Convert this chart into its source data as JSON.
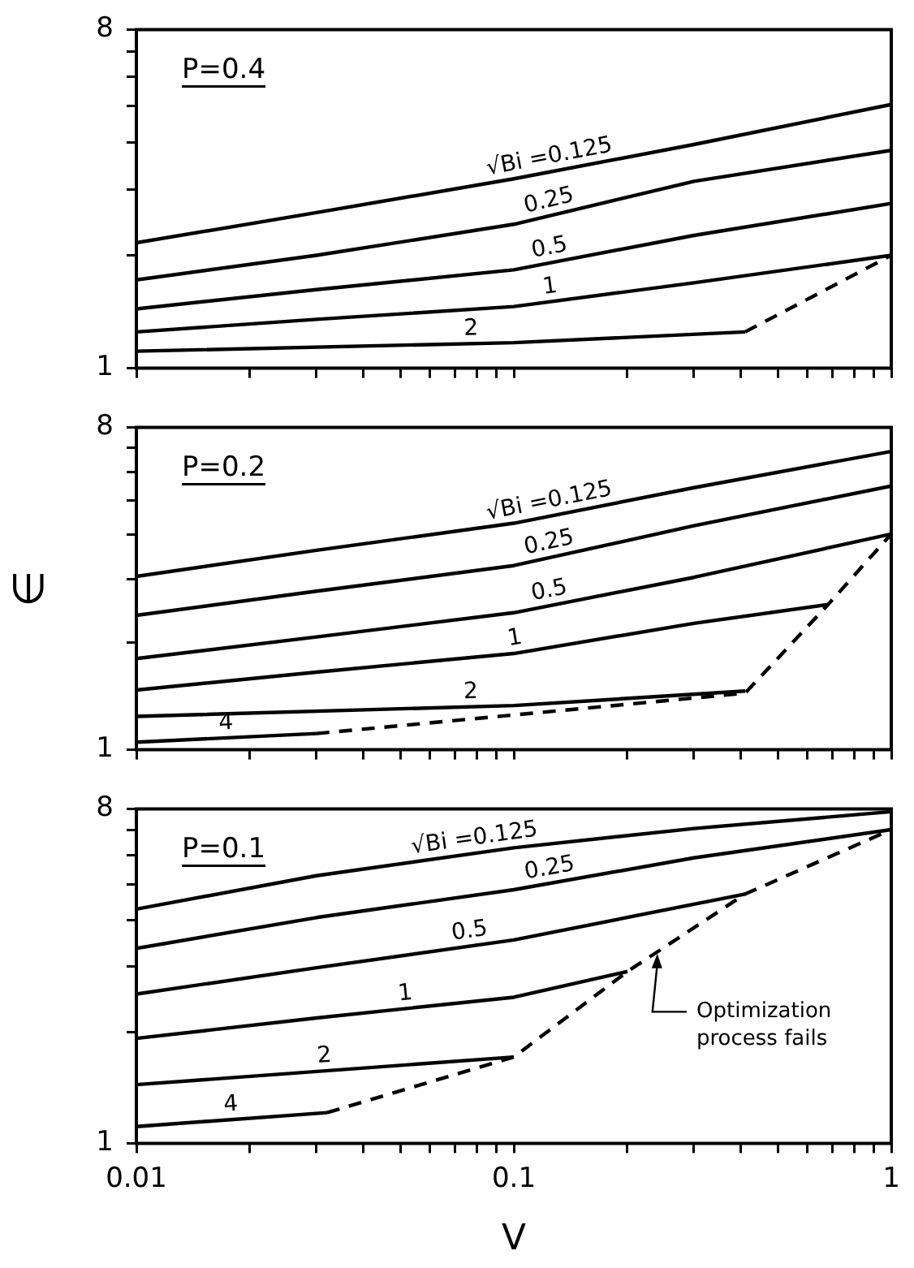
{
  "chart_data": [
    {
      "type": "line",
      "title": "P=0.4",
      "xlim": [
        0.01,
        1
      ],
      "ylim": [
        1,
        8
      ],
      "log": "xy",
      "grid": false,
      "legend": false,
      "tick_labels": "y",
      "line_style": "solid",
      "marker": "none",
      "xticks": [
        {
          "value": 0.01,
          "label": null
        },
        {
          "value": 0.02,
          "label": null
        },
        {
          "value": 0.03,
          "label": null
        },
        {
          "value": 0.04,
          "label": null
        },
        {
          "value": 0.05,
          "label": null
        },
        {
          "value": 0.06,
          "label": null
        },
        {
          "value": 0.07,
          "label": null
        },
        {
          "value": 0.08,
          "label": null
        },
        {
          "value": 0.09,
          "label": null
        },
        {
          "value": 0.1,
          "label": null
        },
        {
          "value": 0.2,
          "label": null
        },
        {
          "value": 0.3,
          "label": null
        },
        {
          "value": 0.4,
          "label": null
        },
        {
          "value": 0.5,
          "label": null
        },
        {
          "value": 0.6,
          "label": null
        },
        {
          "value": 0.7,
          "label": null
        },
        {
          "value": 0.8,
          "label": null
        },
        {
          "value": 0.9,
          "label": null
        },
        {
          "value": 1,
          "label": null
        }
      ],
      "yticks": [
        {
          "value": 1,
          "label": "1"
        },
        {
          "value": 2,
          "label": null
        },
        {
          "value": 3,
          "label": null
        },
        {
          "value": 4,
          "label": null
        },
        {
          "value": 5,
          "label": null
        },
        {
          "value": 6,
          "label": null
        },
        {
          "value": 7,
          "label": null
        },
        {
          "value": 8,
          "label": "8"
        }
      ],
      "series": [
        {
          "name": "√Bi =0.125",
          "color": "#000000",
          "x": [
            0.01,
            0.03,
            0.1,
            0.3,
            1
          ],
          "values": [
            2.16,
            2.6,
            3.2,
            3.95,
            5.05
          ]
        },
        {
          "name": "0.25",
          "color": "#000000",
          "x": [
            0.01,
            0.03,
            0.1,
            0.3,
            1
          ],
          "values": [
            1.72,
            2.0,
            2.42,
            3.15,
            3.81
          ]
        },
        {
          "name": "0.5",
          "color": "#000000",
          "x": [
            0.01,
            0.03,
            0.1,
            0.3,
            1
          ],
          "values": [
            1.44,
            1.62,
            1.83,
            2.26,
            2.75
          ]
        },
        {
          "name": "1",
          "color": "#000000",
          "x": [
            0.01,
            0.03,
            0.1,
            0.3,
            1
          ],
          "values": [
            1.25,
            1.35,
            1.46,
            1.69,
            2.0
          ]
        },
        {
          "name": "2",
          "color": "#000000",
          "x": [
            0.01,
            0.1,
            0.41
          ],
          "values": [
            1.11,
            1.17,
            1.25
          ]
        },
        {
          "color": "#000000",
          "line_style": "dashed",
          "x": [
            0.41,
            1
          ],
          "values": [
            1.25,
            2.0
          ]
        }
      ]
    },
    {
      "type": "line",
      "title": "P=0.2",
      "ylabel": "∈",
      "xlim": [
        0.01,
        1
      ],
      "ylim": [
        1,
        8
      ],
      "log": "xy",
      "grid": false,
      "legend": false,
      "tick_labels": "y",
      "line_style": "solid",
      "marker": "none",
      "xticks": [
        {
          "value": 0.01,
          "label": null
        },
        {
          "value": 0.02,
          "label": null
        },
        {
          "value": 0.03,
          "label": null
        },
        {
          "value": 0.04,
          "label": null
        },
        {
          "value": 0.05,
          "label": null
        },
        {
          "value": 0.06,
          "label": null
        },
        {
          "value": 0.07,
          "label": null
        },
        {
          "value": 0.08,
          "label": null
        },
        {
          "value": 0.09,
          "label": null
        },
        {
          "value": 0.1,
          "label": null
        },
        {
          "value": 0.2,
          "label": null
        },
        {
          "value": 0.3,
          "label": null
        },
        {
          "value": 0.4,
          "label": null
        },
        {
          "value": 0.5,
          "label": null
        },
        {
          "value": 0.6,
          "label": null
        },
        {
          "value": 0.7,
          "label": null
        },
        {
          "value": 0.8,
          "label": null
        },
        {
          "value": 0.9,
          "label": null
        },
        {
          "value": 1,
          "label": null
        }
      ],
      "yticks": [
        {
          "value": 1,
          "label": "1"
        },
        {
          "value": 2,
          "label": null
        },
        {
          "value": 3,
          "label": null
        },
        {
          "value": 4,
          "label": null
        },
        {
          "value": 5,
          "label": null
        },
        {
          "value": 6,
          "label": null
        },
        {
          "value": 7,
          "label": null
        },
        {
          "value": 8,
          "label": "8"
        }
      ],
      "series": [
        {
          "name": "√Bi =0.125",
          "color": "#000000",
          "x": [
            0.01,
            0.03,
            0.1,
            0.3,
            1
          ],
          "values": [
            3.06,
            3.62,
            4.31,
            5.42,
            6.85
          ]
        },
        {
          "name": "0.25",
          "color": "#000000",
          "x": [
            0.01,
            0.03,
            0.1,
            0.3,
            1
          ],
          "values": [
            2.38,
            2.78,
            3.28,
            4.24,
            5.48
          ]
        },
        {
          "name": "0.5",
          "color": "#000000",
          "x": [
            0.01,
            0.03,
            0.1,
            0.3,
            1
          ],
          "values": [
            1.8,
            2.07,
            2.42,
            3.04,
            4.02
          ]
        },
        {
          "name": "1",
          "color": "#000000",
          "x": [
            0.01,
            0.03,
            0.1,
            0.3,
            0.68
          ],
          "values": [
            1.47,
            1.65,
            1.86,
            2.26,
            2.55
          ]
        },
        {
          "name": "2",
          "color": "#000000",
          "x": [
            0.01,
            0.1,
            0.41
          ],
          "values": [
            1.24,
            1.33,
            1.46
          ]
        },
        {
          "name": "4",
          "color": "#000000",
          "x": [
            0.01,
            0.03
          ],
          "values": [
            1.05,
            1.11
          ]
        },
        {
          "color": "#000000",
          "line_style": "dashed",
          "x": [
            0.03,
            0.41,
            0.68,
            1
          ],
          "values": [
            1.11,
            1.44,
            2.55,
            4.02
          ]
        }
      ]
    },
    {
      "type": "line",
      "title": "P=0.1",
      "xlabel": "V",
      "xlim": [
        0.01,
        1
      ],
      "ylim": [
        1,
        8
      ],
      "log": "xy",
      "grid": false,
      "legend": false,
      "line_style": "solid",
      "marker": "none",
      "xticks": [
        {
          "value": 0.01,
          "label": "0.01"
        },
        {
          "value": 0.02,
          "label": null
        },
        {
          "value": 0.03,
          "label": null
        },
        {
          "value": 0.04,
          "label": null
        },
        {
          "value": 0.05,
          "label": null
        },
        {
          "value": 0.06,
          "label": null
        },
        {
          "value": 0.07,
          "label": null
        },
        {
          "value": 0.08,
          "label": null
        },
        {
          "value": 0.09,
          "label": null
        },
        {
          "value": 0.1,
          "label": "0.1"
        },
        {
          "value": 0.2,
          "label": null
        },
        {
          "value": 0.3,
          "label": null
        },
        {
          "value": 0.4,
          "label": null
        },
        {
          "value": 0.5,
          "label": null
        },
        {
          "value": 0.6,
          "label": null
        },
        {
          "value": 0.7,
          "label": null
        },
        {
          "value": 0.8,
          "label": null
        },
        {
          "value": 0.9,
          "label": null
        },
        {
          "value": 1,
          "label": "1"
        }
      ],
      "yticks": [
        {
          "value": 1,
          "label": "1"
        },
        {
          "value": 2,
          "label": null
        },
        {
          "value": 3,
          "label": null
        },
        {
          "value": 4,
          "label": null
        },
        {
          "value": 5,
          "label": null
        },
        {
          "value": 6,
          "label": null
        },
        {
          "value": 7,
          "label": null
        },
        {
          "value": 8,
          "label": "8"
        }
      ],
      "annotations": [
        {
          "text": "Optimization\nprocess fails",
          "x": 0.24,
          "y": 3.25
        }
      ],
      "series": [
        {
          "name": "√Bi =0.125",
          "color": "#000000",
          "x": [
            0.01,
            0.03,
            0.1,
            0.3,
            1
          ],
          "values": [
            4.29,
            5.28,
            6.28,
            7.08,
            7.86
          ]
        },
        {
          "name": "0.25",
          "color": "#000000",
          "x": [
            0.01,
            0.03,
            0.1,
            0.3,
            1
          ],
          "values": [
            3.36,
            4.07,
            4.84,
            5.9,
            7.03
          ]
        },
        {
          "name": "0.5",
          "color": "#000000",
          "x": [
            0.01,
            0.03,
            0.1,
            0.41
          ],
          "values": [
            2.53,
            2.98,
            3.54,
            4.71
          ]
        },
        {
          "name": "1",
          "color": "#000000",
          "x": [
            0.01,
            0.03,
            0.1,
            0.2
          ],
          "values": [
            1.92,
            2.18,
            2.48,
            2.91
          ]
        },
        {
          "name": "2",
          "color": "#000000",
          "x": [
            0.01,
            0.1
          ],
          "values": [
            1.44,
            1.71
          ]
        },
        {
          "name": "4",
          "color": "#000000",
          "x": [
            0.01,
            0.032
          ],
          "values": [
            1.11,
            1.21
          ]
        },
        {
          "color": "#000000",
          "line_style": "dashed",
          "x": [
            0.032,
            0.1,
            0.2,
            0.41,
            1
          ],
          "values": [
            1.21,
            1.71,
            2.91,
            4.71,
            7.03
          ]
        }
      ]
    }
  ]
}
